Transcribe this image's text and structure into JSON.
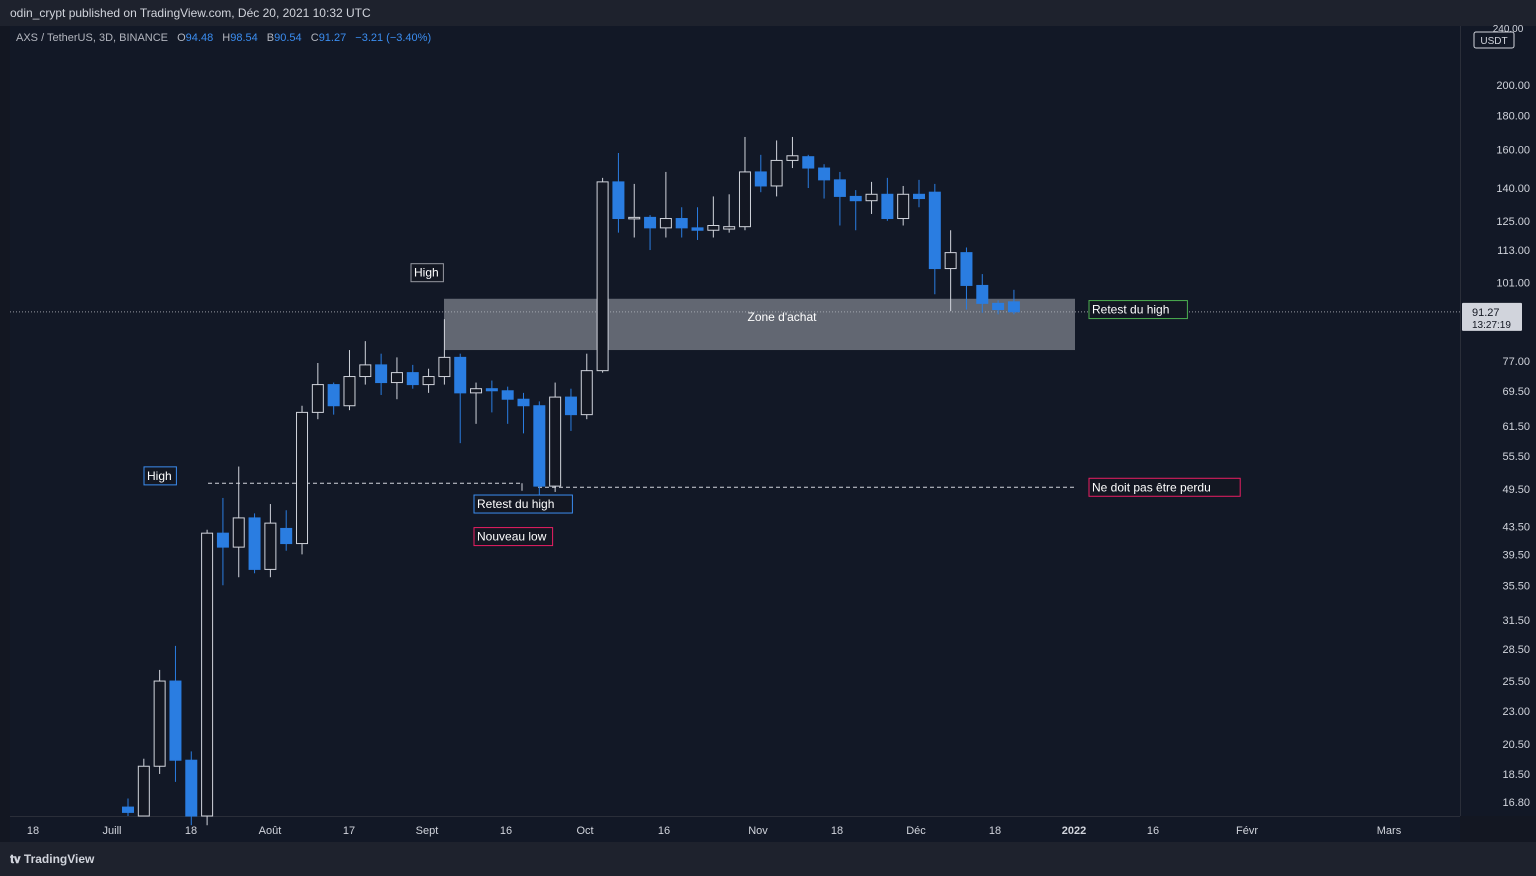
{
  "header": {
    "published_text": "odin_crypt published on TradingView.com, Déc 20, 2021 10:32 UTC"
  },
  "legend": {
    "symbol": "AXS / TetherUS, 3D, BINANCE",
    "o_label": "O",
    "o_value": "94.48",
    "h_label": "H",
    "h_value": "98.54",
    "l_label": "B",
    "l_value": "90.54",
    "c_label": "C",
    "c_value": "91.27",
    "change": "−3.21 (−3.40%)"
  },
  "price_axis": {
    "currency": "USDT",
    "top_partial": "240.00",
    "current_price": "91.27",
    "countdown": "13:27:19"
  },
  "footer": {
    "brand": "TradingView"
  },
  "colors": {
    "background": "#121826",
    "up": "#131722",
    "up_border": "#d1d4dc",
    "down": "#2a7de1",
    "accent_red": "#e91e63",
    "accent_green": "#4caf50",
    "accent_blue": "#3b8df0"
  },
  "chart_data": {
    "type": "candlestick",
    "scale": "log",
    "ylim": [
      16.0,
      245.0
    ],
    "y_ticks": [
      16.8,
      18.5,
      20.5,
      23.0,
      25.5,
      28.5,
      31.5,
      35.5,
      39.5,
      43.5,
      49.5,
      55.5,
      61.5,
      69.5,
      77.0,
      101.0,
      113.0,
      125.0,
      140.0,
      160.0,
      180.0,
      200.0
    ],
    "y_tick_labels": [
      "16.80",
      "18.50",
      "20.50",
      "23.00",
      "25.50",
      "28.50",
      "31.50",
      "35.50",
      "39.50",
      "43.50",
      "49.50",
      "55.50",
      "61.50",
      "69.50",
      "77.00",
      "101.00",
      "113.00",
      "125.00",
      "140.00",
      "160.00",
      "180.00",
      "200.00"
    ],
    "x_ticks": [
      "18",
      "Juill",
      "18",
      "Août",
      "17",
      "Sept",
      "16",
      "Oct",
      "16",
      "Nov",
      "18",
      "Déc",
      "18",
      "2022",
      "16",
      "Févr",
      "Mars"
    ],
    "candles": [
      {
        "o": 16.5,
        "h": 17.0,
        "l": 16.0,
        "c": 16.2
      },
      {
        "o": 16.0,
        "h": 19.5,
        "l": 16.0,
        "c": 19.0
      },
      {
        "o": 19.0,
        "h": 26.5,
        "l": 18.5,
        "c": 25.5
      },
      {
        "o": 25.5,
        "h": 28.8,
        "l": 18.0,
        "c": 19.4
      },
      {
        "o": 19.4,
        "h": 20.0,
        "l": 15.5,
        "c": 16.0
      },
      {
        "o": 16.0,
        "h": 43.0,
        "l": 15.5,
        "c": 42.5
      },
      {
        "o": 42.5,
        "h": 48.0,
        "l": 35.5,
        "c": 40.5
      },
      {
        "o": 40.5,
        "h": 53.5,
        "l": 36.5,
        "c": 44.8
      },
      {
        "o": 44.8,
        "h": 45.5,
        "l": 37.0,
        "c": 37.5
      },
      {
        "o": 37.5,
        "h": 47.0,
        "l": 36.5,
        "c": 44.0
      },
      {
        "o": 43.2,
        "h": 46.0,
        "l": 40.0,
        "c": 41.0
      },
      {
        "o": 41.0,
        "h": 66.0,
        "l": 39.5,
        "c": 64.5
      },
      {
        "o": 64.5,
        "h": 76.5,
        "l": 63.0,
        "c": 71.0
      },
      {
        "o": 71.0,
        "h": 71.5,
        "l": 64.0,
        "c": 66.0
      },
      {
        "o": 66.0,
        "h": 80.0,
        "l": 65.0,
        "c": 73.0
      },
      {
        "o": 73.0,
        "h": 82.5,
        "l": 71.0,
        "c": 76.0
      },
      {
        "o": 76.0,
        "h": 79.0,
        "l": 68.5,
        "c": 71.5
      },
      {
        "o": 71.5,
        "h": 78.0,
        "l": 67.5,
        "c": 74.0
      },
      {
        "o": 74.0,
        "h": 76.0,
        "l": 70.0,
        "c": 71.0
      },
      {
        "o": 71.0,
        "h": 75.0,
        "l": 69.0,
        "c": 73.0
      },
      {
        "o": 73.0,
        "h": 89.0,
        "l": 71.0,
        "c": 78.0
      },
      {
        "o": 78.0,
        "h": 79.0,
        "l": 58.0,
        "c": 69.0
      },
      {
        "o": 69.0,
        "h": 71.5,
        "l": 62.0,
        "c": 70.0
      },
      {
        "o": 70.0,
        "h": 72.0,
        "l": 64.5,
        "c": 69.5
      },
      {
        "o": 69.5,
        "h": 70.5,
        "l": 62.0,
        "c": 67.5
      },
      {
        "o": 67.5,
        "h": 69.0,
        "l": 60.0,
        "c": 66.0
      },
      {
        "o": 66.0,
        "h": 67.0,
        "l": 47.5,
        "c": 50.0
      },
      {
        "o": 50.0,
        "h": 71.5,
        "l": 49.0,
        "c": 68.0
      },
      {
        "o": 68.0,
        "h": 70.0,
        "l": 60.5,
        "c": 64.0
      },
      {
        "o": 64.0,
        "h": 79.0,
        "l": 63.0,
        "c": 74.5
      },
      {
        "o": 74.5,
        "h": 145.0,
        "l": 74.0,
        "c": 143.0
      },
      {
        "o": 143.0,
        "h": 158.0,
        "l": 120.0,
        "c": 126.0
      },
      {
        "o": 126.0,
        "h": 142.0,
        "l": 118.0,
        "c": 126.5
      },
      {
        "o": 126.5,
        "h": 127.5,
        "l": 113.0,
        "c": 122.0
      },
      {
        "o": 122.0,
        "h": 148.0,
        "l": 118.0,
        "c": 126.0
      },
      {
        "o": 126.0,
        "h": 131.0,
        "l": 118.0,
        "c": 122.0
      },
      {
        "o": 122.0,
        "h": 131.0,
        "l": 117.0,
        "c": 121.0
      },
      {
        "o": 121.0,
        "h": 136.0,
        "l": 118.0,
        "c": 123.0
      },
      {
        "o": 121.5,
        "h": 137.0,
        "l": 120.0,
        "c": 122.5
      },
      {
        "o": 122.5,
        "h": 167.0,
        "l": 121.0,
        "c": 148.0
      },
      {
        "o": 148.0,
        "h": 157.0,
        "l": 138.0,
        "c": 141.0
      },
      {
        "o": 141.0,
        "h": 165.0,
        "l": 136.0,
        "c": 154.0
      },
      {
        "o": 154.0,
        "h": 167.0,
        "l": 150.0,
        "c": 156.5
      },
      {
        "o": 156.0,
        "h": 157.0,
        "l": 140.0,
        "c": 150.0
      },
      {
        "o": 150.0,
        "h": 152.0,
        "l": 135.0,
        "c": 144.0
      },
      {
        "o": 144.0,
        "h": 148.0,
        "l": 123.0,
        "c": 136.0
      },
      {
        "o": 136.0,
        "h": 139.0,
        "l": 121.0,
        "c": 134.0
      },
      {
        "o": 134.0,
        "h": 143.0,
        "l": 128.0,
        "c": 137.0
      },
      {
        "o": 137.0,
        "h": 145.0,
        "l": 125.0,
        "c": 126.0
      },
      {
        "o": 126.0,
        "h": 141.0,
        "l": 123.0,
        "c": 137.0
      },
      {
        "o": 137.0,
        "h": 144.0,
        "l": 131.0,
        "c": 135.0
      },
      {
        "o": 138.0,
        "h": 142.0,
        "l": 97.0,
        "c": 106.0
      },
      {
        "o": 106.0,
        "h": 121.0,
        "l": 91.5,
        "c": 112.0
      },
      {
        "o": 112.0,
        "h": 114.0,
        "l": 92.0,
        "c": 100.0
      },
      {
        "o": 100.0,
        "h": 104.0,
        "l": 91.0,
        "c": 94.0
      },
      {
        "o": 94.0,
        "h": 95.0,
        "l": 90.5,
        "c": 92.0
      },
      {
        "o": 94.5,
        "h": 98.5,
        "l": 90.5,
        "c": 91.3
      }
    ],
    "annotations": [
      {
        "text": "High",
        "color": "#3b8df0",
        "value": 50.5
      },
      {
        "text": "High",
        "color": "#ffffff",
        "value": 96.0
      },
      {
        "text": "Retest du high",
        "color": "#3b8df0",
        "value": 48.5
      },
      {
        "text": "Nouveau low",
        "color": "#e91e63",
        "value": 48.5
      },
      {
        "text": "Retest du high",
        "color": "#4caf50",
        "value": 96.0
      },
      {
        "text": "Ne doit pas être perdu",
        "color": "#e91e63",
        "value": 49.8
      },
      {
        "text": "Zone d'achat",
        "color": "#d1d4dc",
        "range": [
          80.0,
          95.5
        ]
      }
    ]
  }
}
